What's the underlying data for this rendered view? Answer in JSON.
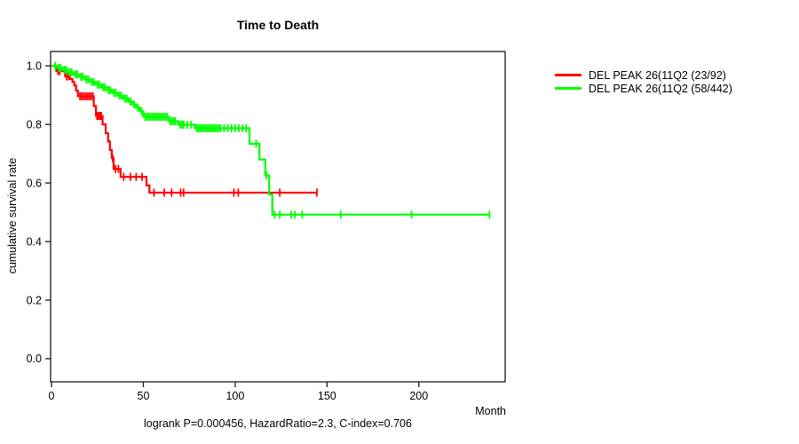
{
  "chart_data": {
    "type": "line",
    "subtype": "kaplan-meier-step",
    "title": "Time to Death",
    "xlabel": "Month",
    "ylabel": "cumulative survival rate",
    "caption": "logrank P=0.000456, HazardRatio=2.3, C-index=0.706",
    "grid": false,
    "legend_position": "right-outside",
    "xlim": [
      -0.5,
      247
    ],
    "ylim": [
      -0.079,
      1.049
    ],
    "x_ticks": [
      {
        "v": 0,
        "label": "0"
      },
      {
        "v": 50,
        "label": "50"
      },
      {
        "v": 100,
        "label": "100"
      },
      {
        "v": 150,
        "label": "150"
      },
      {
        "v": 200,
        "label": "200"
      }
    ],
    "y_ticks": [
      {
        "v": 0.0,
        "label": "0.0"
      },
      {
        "v": 0.2,
        "label": "0.2"
      },
      {
        "v": 0.4,
        "label": "0.4"
      },
      {
        "v": 0.6,
        "label": "0.6"
      },
      {
        "v": 0.8,
        "label": "0.8"
      },
      {
        "v": 1.0,
        "label": "1.0"
      }
    ],
    "series": [
      {
        "name": "DEL PEAK 26(11Q2 (23/92)",
        "color": "#FF0000",
        "end_month": 144.5,
        "steps": [
          [
            0,
            1.0
          ],
          [
            2.6,
            0.982
          ],
          [
            7.4,
            0.964
          ],
          [
            10,
            0.955
          ],
          [
            11.4,
            0.945
          ],
          [
            12.4,
            0.933
          ],
          [
            13.4,
            0.915
          ],
          [
            14.4,
            0.896
          ],
          [
            23,
            0.863
          ],
          [
            24.2,
            0.829
          ],
          [
            27.8,
            0.8
          ],
          [
            29.5,
            0.77
          ],
          [
            30.8,
            0.742
          ],
          [
            31.8,
            0.713
          ],
          [
            32.8,
            0.685
          ],
          [
            33.8,
            0.648
          ],
          [
            37.6,
            0.621
          ],
          [
            51.7,
            0.592
          ],
          [
            53.3,
            0.567
          ]
        ],
        "censor_marks": [
          3.5,
          4.5,
          8.2,
          9.3,
          15.5,
          16.5,
          17.5,
          18.5,
          19.5,
          20.5,
          21.5,
          22.5,
          24.8,
          25.6,
          26.4,
          27.1,
          33.3,
          34.8,
          36.4,
          39.3,
          42.9,
          46.1,
          49.3,
          55.8,
          61.4,
          65.4,
          70.3,
          71.9,
          99.3,
          101.7,
          124.3,
          144.5
        ]
      },
      {
        "name": "DEL PEAK 26(11Q2 (58/442)",
        "color": "#00FF00",
        "end_month": 238.5,
        "steps": [
          [
            0,
            1.0
          ],
          [
            3,
            0.993
          ],
          [
            6,
            0.986
          ],
          [
            9,
            0.978
          ],
          [
            12,
            0.971
          ],
          [
            15,
            0.963
          ],
          [
            18,
            0.954
          ],
          [
            21,
            0.945
          ],
          [
            24,
            0.936
          ],
          [
            27,
            0.927
          ],
          [
            30,
            0.917
          ],
          [
            33,
            0.908
          ],
          [
            36,
            0.898
          ],
          [
            39,
            0.888
          ],
          [
            42,
            0.878
          ],
          [
            44,
            0.868
          ],
          [
            46,
            0.858
          ],
          [
            48,
            0.845
          ],
          [
            50,
            0.826
          ],
          [
            64,
            0.811
          ],
          [
            69,
            0.799
          ],
          [
            78,
            0.787
          ],
          [
            107.8,
            0.734
          ],
          [
            113.2,
            0.68
          ],
          [
            116.4,
            0.626
          ],
          [
            118.5,
            0.561
          ],
          [
            120.2,
            0.492
          ]
        ],
        "censor_marks": [
          2,
          4,
          5,
          7,
          8,
          10,
          11,
          13,
          14,
          16,
          17,
          19,
          20,
          22,
          23,
          25,
          26,
          28,
          29,
          31,
          32,
          34,
          35,
          37,
          38,
          40,
          41,
          43,
          45,
          47,
          49,
          51,
          52,
          53,
          54,
          55,
          56,
          57,
          58,
          59,
          60,
          61,
          62,
          63,
          64.5,
          65.5,
          66.5,
          67.5,
          70,
          71,
          72,
          74,
          76,
          79,
          80,
          81,
          82,
          83,
          84,
          85,
          86,
          87,
          88,
          89,
          90,
          91,
          92,
          94,
          96,
          98,
          100,
          102,
          104,
          106,
          111.4,
          117,
          121.5,
          124.3,
          130.5,
          132.5,
          136.5,
          157.5,
          196,
          238.5
        ]
      }
    ]
  }
}
